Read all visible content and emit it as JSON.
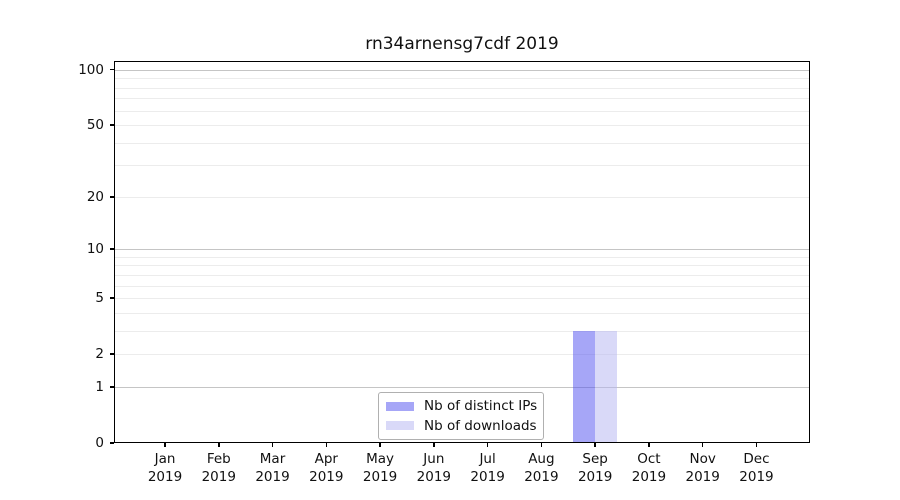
{
  "title": "rn34arnensg7cdf 2019",
  "legend": {
    "entries": [
      {
        "label": "Nb of distinct IPs",
        "color": "#4d4df0",
        "alpha": 0.5
      },
      {
        "label": "Nb of downloads",
        "color": "#b3b3f1",
        "alpha": 0.5
      }
    ]
  },
  "chart_data": {
    "type": "bar",
    "title": "rn34arnensg7cdf 2019",
    "xlabel": "",
    "ylabel": "",
    "categories": [
      "Jan",
      "Feb",
      "Mar",
      "Apr",
      "May",
      "Jun",
      "Jul",
      "Aug",
      "Sep",
      "Oct",
      "Nov",
      "Dec"
    ],
    "year": "2019",
    "series": [
      {
        "name": "Nb of distinct IPs",
        "color": "#4d4df0",
        "alpha": 0.5,
        "values": [
          0,
          0,
          0,
          0,
          0,
          0,
          0,
          0,
          3,
          0,
          0,
          0
        ]
      },
      {
        "name": "Nb of downloads",
        "color": "#b3b3f1",
        "alpha": 0.5,
        "values": [
          0,
          0,
          0,
          0,
          0,
          0,
          0,
          0,
          3,
          0,
          0,
          0
        ]
      }
    ],
    "yscale": "log1p",
    "ylim": [
      0,
      111.5
    ],
    "yticks": [
      0,
      1,
      2,
      5,
      10,
      20,
      50,
      100
    ],
    "grid": {
      "major_values": [
        1,
        10,
        100
      ],
      "minor_values": [
        2,
        3,
        4,
        5,
        6,
        7,
        8,
        9,
        20,
        30,
        40,
        50,
        60,
        70,
        80,
        90
      ],
      "major_color": "#c5c5c5",
      "minor_color": "#ececec"
    },
    "legend_position": "lower center"
  }
}
